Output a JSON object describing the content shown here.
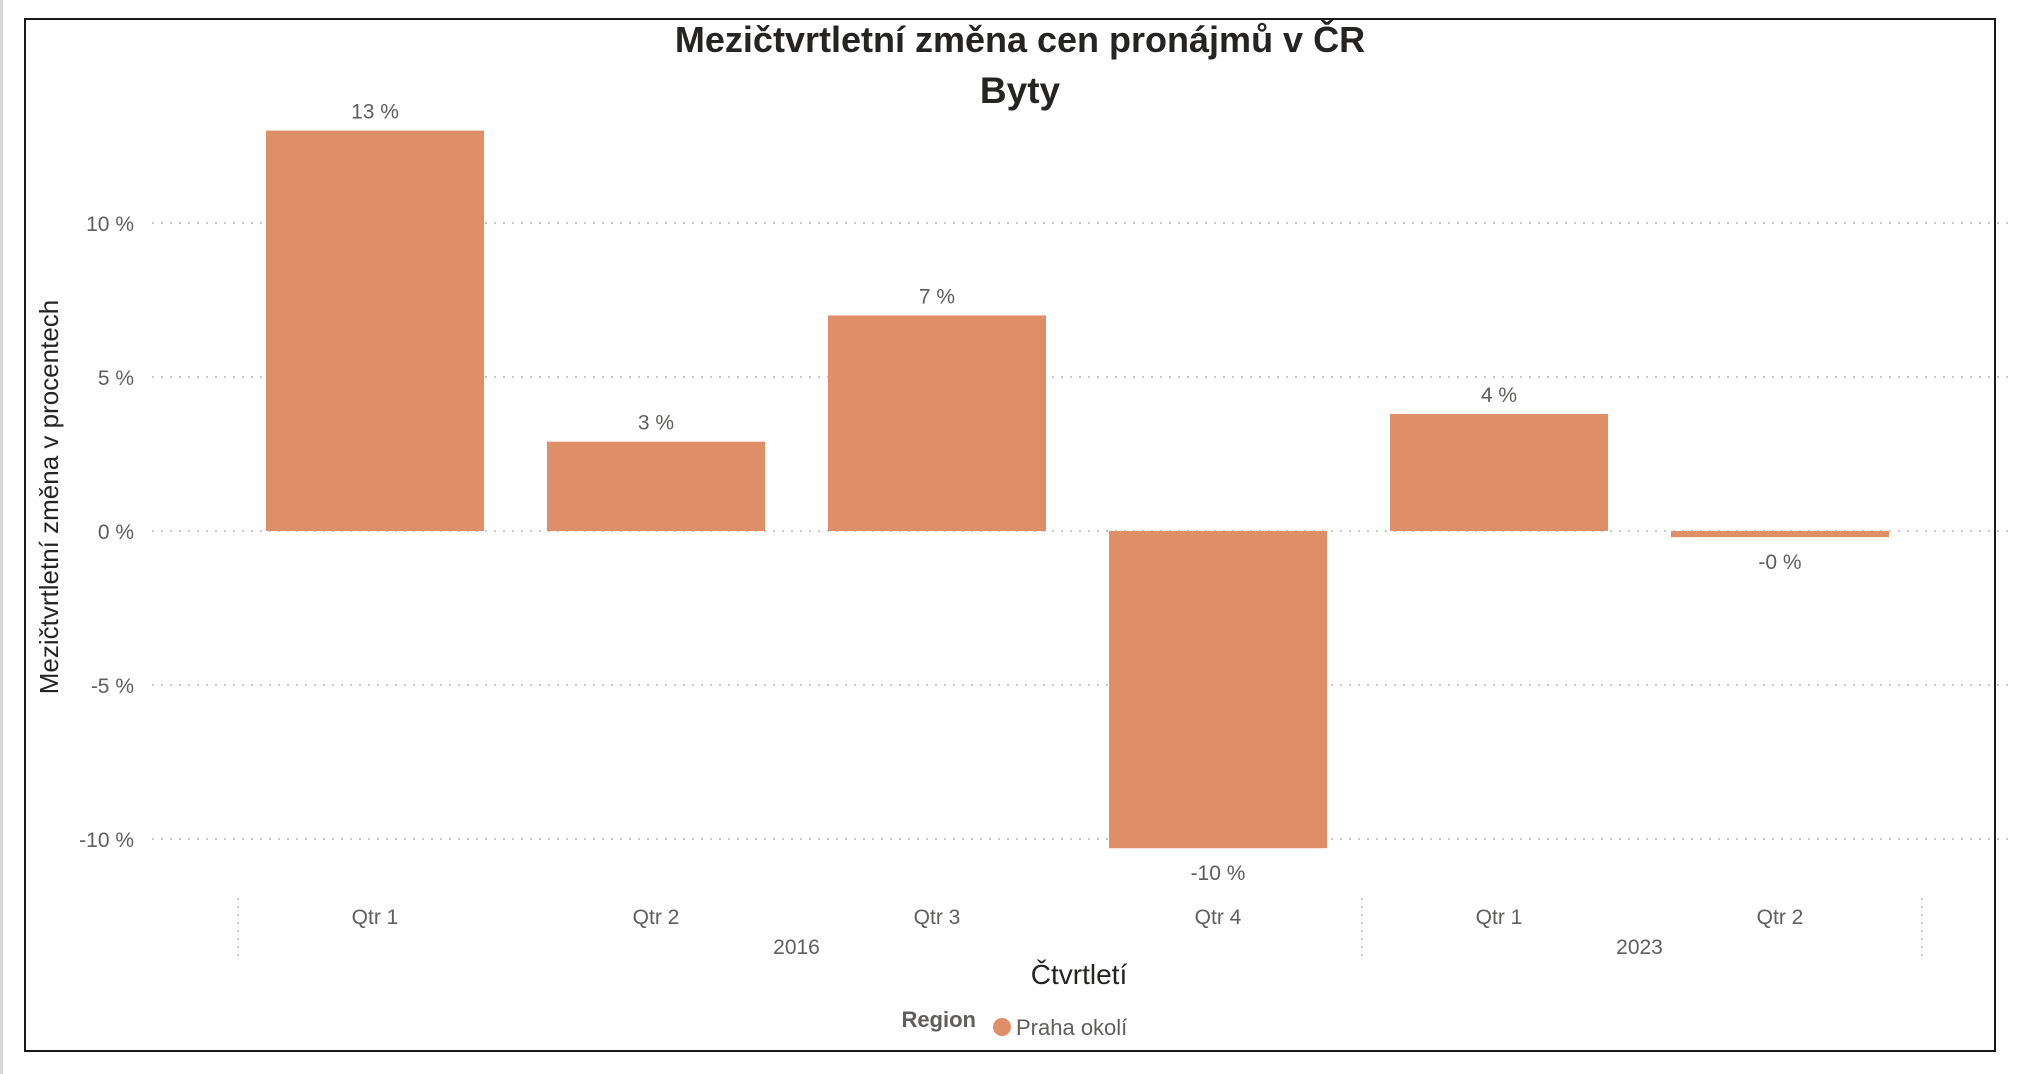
{
  "chart_data": {
    "type": "bar",
    "title": "Mezičtvrtletní změna cen pronájmů v ČR",
    "subtitle": "Byty",
    "xlabel": "Čtvrtletí",
    "ylabel": "Mezičtvrtletní změna v procentech",
    "categories": [
      "Qtr 1",
      "Qtr 2",
      "Qtr 3",
      "Qtr 4",
      "Qtr 1",
      "Qtr 2"
    ],
    "category_groups": [
      {
        "label": "2016",
        "categories": [
          "Qtr 1",
          "Qtr 2",
          "Qtr 3",
          "Qtr 4"
        ]
      },
      {
        "label": "2023",
        "categories": [
          "Qtr 1",
          "Qtr 2"
        ]
      }
    ],
    "series": [
      {
        "name": "Praha okolí",
        "values": [
          13.0,
          2.9,
          7.0,
          -10.3,
          3.8,
          -0.2
        ],
        "data_labels": [
          "13 %",
          "3 %",
          "7 %",
          "-10 %",
          "4 %",
          "-0 %"
        ]
      }
    ],
    "yticks": [
      10,
      5,
      0,
      -5,
      -10
    ],
    "ytick_labels": [
      "10 %",
      "5 %",
      "0 %",
      "-5 %",
      "-10 %"
    ],
    "ylim": [
      -11.3,
      13.8
    ],
    "grid": true,
    "legend": {
      "title": "Region",
      "position": "bottom-center"
    },
    "colors": {
      "bar": "#DE8F68",
      "grid": "#c8c8c8",
      "text": "#252423",
      "tick": "#605e5c"
    }
  }
}
